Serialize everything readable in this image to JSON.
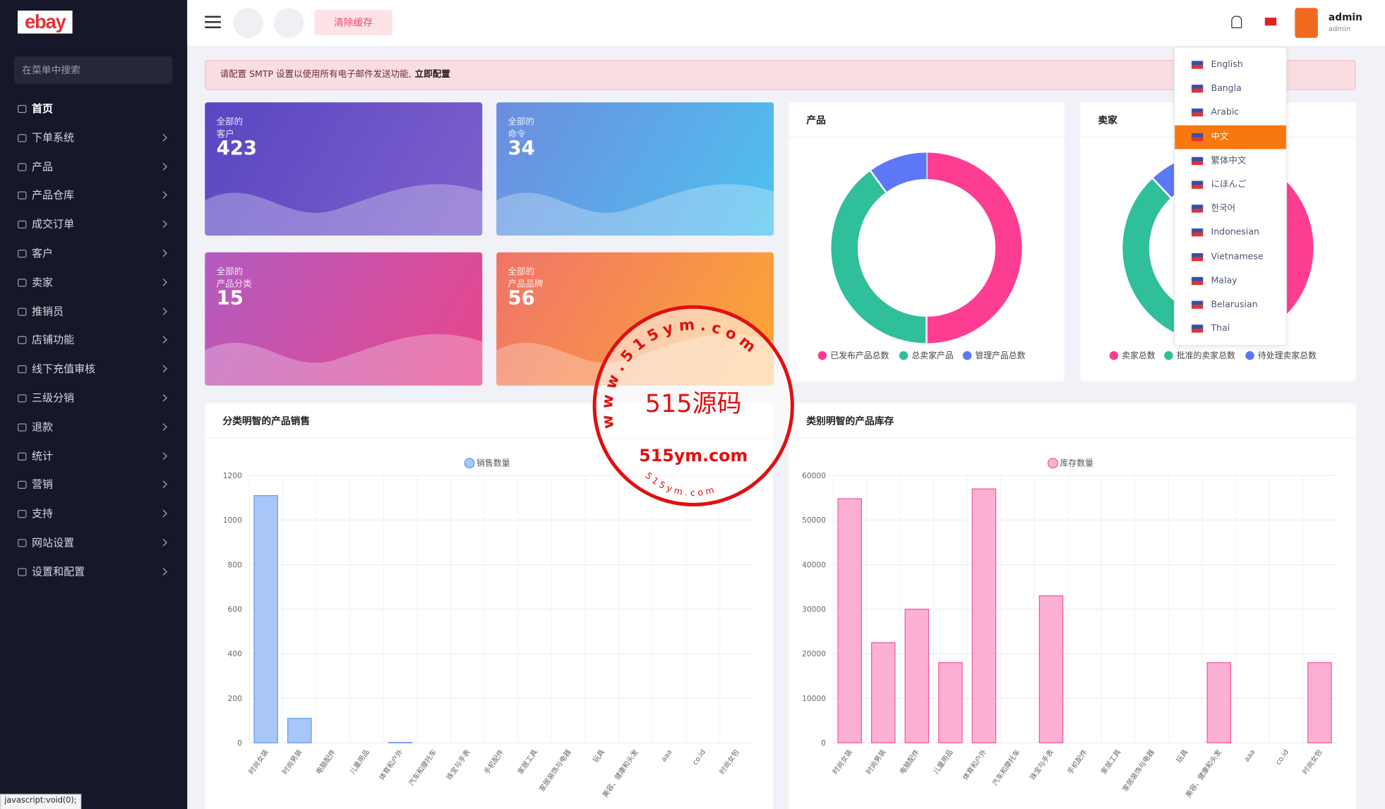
{
  "header": {
    "logo": "ebay",
    "clear_cache": "清除缓存",
    "user_name": "admin",
    "user_role": "admin"
  },
  "sidebar": {
    "search_placeholder": "在菜单中搜索",
    "menu": [
      "首页",
      "下单系统",
      "产品",
      "产品仓库",
      "成交订单",
      "客户",
      "卖家",
      "推销员",
      "店铺功能",
      "线下充值审核",
      "三级分销",
      "退款",
      "统计",
      "营销",
      "支持",
      "网站设置",
      "设置和配置"
    ]
  },
  "alert": {
    "text": "请配置 SMTP 设置以使用所有电子邮件发送功能,",
    "link": "立即配置"
  },
  "stats": [
    {
      "line1": "全部的",
      "line2": "客户",
      "value": 423
    },
    {
      "line1": "全部的",
      "line2": "命令",
      "value": 34
    },
    {
      "line1": "全部的",
      "line2": "产品分类",
      "value": 15
    },
    {
      "line1": "全部的",
      "line2": "产品品牌",
      "value": 56
    }
  ],
  "languages": {
    "items": [
      "English",
      "Bangla",
      "Arabic",
      "中文",
      "繁体中文",
      "にほんご",
      "한국어",
      "Indonesian",
      "Vietnamese",
      "Malay",
      "Belarusian",
      "Thai"
    ],
    "active": "中文"
  },
  "status_bar": "javascript:void(0);",
  "watermark": {
    "main": "515源码",
    "site": "515ym.com",
    "ring": "w w w . 5 1 5 y m . c o m",
    "small": "5 1 5 y m . c o m"
  },
  "chart_data": [
    {
      "type": "donut",
      "title": "产品",
      "series": [
        {
          "name": "已发布产品总数",
          "color": "#fd3d92",
          "values": [
            50
          ]
        },
        {
          "name": "总卖家产品",
          "color": "#2fbf9a",
          "values": [
            40
          ]
        },
        {
          "name": "管理产品总数",
          "color": "#5c78f6",
          "values": [
            10
          ]
        }
      ]
    },
    {
      "type": "donut",
      "title": "卖家",
      "series": [
        {
          "name": "卖家总数",
          "color": "#fd3d92",
          "values": [
            50
          ]
        },
        {
          "name": "批准的卖家总数",
          "color": "#2fbf9a",
          "values": [
            38
          ]
        },
        {
          "name": "待处理卖家总数",
          "color": "#5c78f6",
          "values": [
            12
          ]
        }
      ]
    },
    {
      "type": "bar",
      "title": "分类明智的产品销售",
      "categories": [
        "时尚女装",
        "时尚男装",
        "电脑配件",
        "儿童用品",
        "体育和户外",
        "汽车和摩托车",
        "珠宝与手表",
        "手机配件",
        "家居工具",
        "家居装饰与电器",
        "玩具",
        "美容、健康和头发",
        "aaa",
        "co.id",
        "时尚女包"
      ],
      "series": [
        {
          "name": "销售数量",
          "color": "#a8c6f8",
          "border": "#6a9cf0",
          "values": [
            1110,
            110,
            0,
            0,
            2,
            0,
            0,
            0,
            0,
            0,
            0,
            0,
            0,
            0,
            0
          ]
        }
      ],
      "ylim": [
        0,
        1200
      ],
      "yticks": [
        0,
        200,
        400,
        600,
        800,
        1000,
        1200
      ],
      "grid": true
    },
    {
      "type": "bar",
      "title": "类别明智的产品库存",
      "categories": [
        "时尚女装",
        "时尚男装",
        "电脑配件",
        "儿童用品",
        "体育和户外",
        "汽车和摩托车",
        "珠宝与手表",
        "手机配件",
        "家居工具",
        "家居装饰与电器",
        "玩具",
        "美容、健康和头发",
        "aaa",
        "co.id",
        "时尚女包"
      ],
      "series": [
        {
          "name": "库存数量",
          "color": "#fbb0d4",
          "border": "#f05aa0",
          "values": [
            54800,
            22500,
            30000,
            18000,
            57000,
            0,
            33000,
            0,
            0,
            0,
            0,
            18000,
            0,
            0,
            18000
          ]
        }
      ],
      "ylim": [
        0,
        60000
      ],
      "yticks": [
        0,
        10000,
        20000,
        30000,
        40000,
        50000,
        60000
      ],
      "grid": true
    }
  ]
}
